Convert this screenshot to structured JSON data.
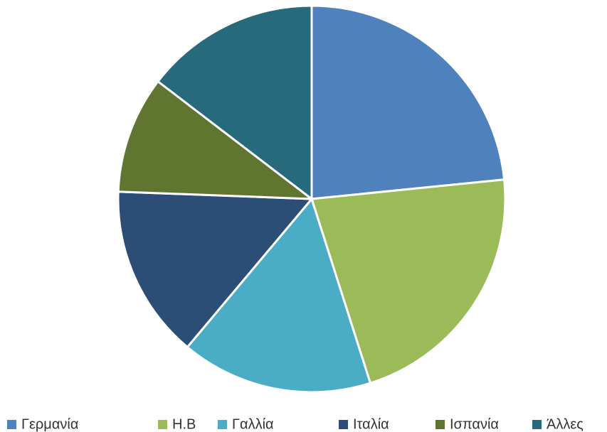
{
  "chart_data": {
    "type": "pie",
    "categories": [
      "Γερμανία",
      "Η.Β",
      "Γαλλία",
      "Ιταλία",
      "Ισπανία",
      "Άλλες"
    ],
    "values": [
      23.4,
      21.7,
      16,
      14.5,
      9.8,
      14.6
    ],
    "colors": [
      "#4f81bd",
      "#9bbb59",
      "#4bacc6",
      "#2c4d75",
      "#5f7530",
      "#276a7c"
    ],
    "legend": "bottom"
  }
}
